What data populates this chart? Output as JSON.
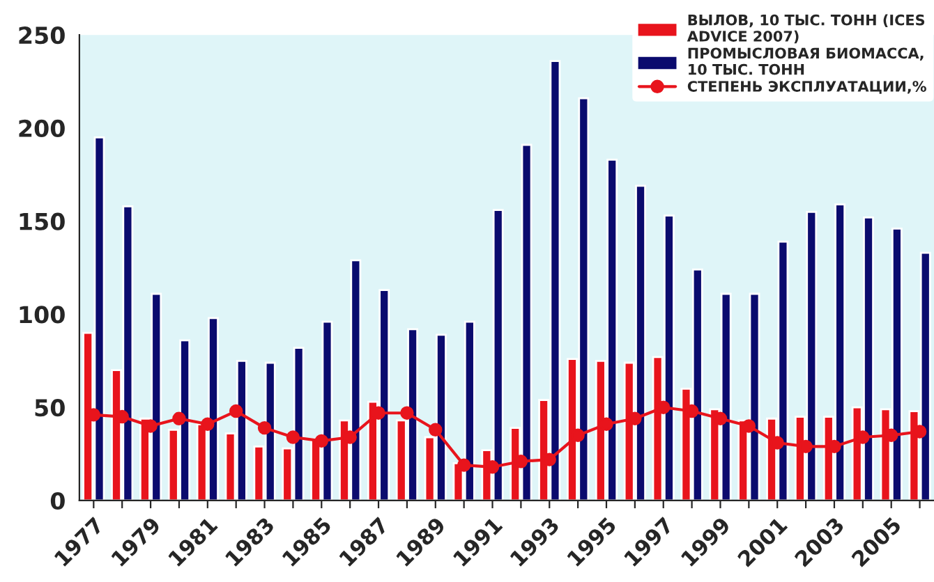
{
  "chart_data": {
    "type": "bar",
    "categories": [
      "1977",
      null,
      "1979",
      null,
      "1981",
      null,
      "1983",
      null,
      "1985",
      null,
      "1987",
      null,
      "1989",
      null,
      "1991",
      null,
      "1993",
      null,
      "1995",
      null,
      "1997",
      null,
      "1999",
      null,
      "2001",
      null,
      "2003",
      null,
      "2005",
      null
    ],
    "series": [
      {
        "name": "ВЫЛОВ, 10 ТЫС. ТОНН (ICES\nADVICE 2007)",
        "color": "#e8141c",
        "values": [
          90,
          70,
          44,
          38,
          41,
          36,
          29,
          28,
          33,
          43,
          53,
          43,
          34,
          20,
          27,
          39,
          54,
          76,
          75,
          74,
          77,
          60,
          49,
          43,
          44,
          45,
          45,
          50,
          49,
          48
        ]
      },
      {
        "name": "ПРОМЫСЛОВАЯ БИОМАССА,\n10 ТЫС. ТОНН",
        "color": "#0b0b6e",
        "values": [
          195,
          158,
          111,
          86,
          98,
          75,
          74,
          82,
          96,
          129,
          113,
          92,
          89,
          96,
          156,
          191,
          236,
          216,
          183,
          169,
          153,
          124,
          111,
          111,
          139,
          155,
          159,
          152,
          146,
          133
        ]
      },
      {
        "name": "СТЕПЕНЬ ЭКСПЛУАТАЦИИ,%",
        "type": "line",
        "color": "#e8141c",
        "marker": "circle",
        "values": [
          46,
          45,
          40,
          44,
          41,
          48,
          39,
          34,
          32,
          34,
          47,
          47,
          38,
          19,
          18,
          21,
          22,
          35,
          41,
          44,
          50,
          48,
          44,
          40,
          31,
          29,
          29,
          34,
          35,
          37
        ]
      }
    ],
    "ylim": [
      0,
      250
    ],
    "yticks": [
      0,
      50,
      100,
      150,
      200,
      250
    ],
    "grid": false,
    "legend": "top right"
  }
}
